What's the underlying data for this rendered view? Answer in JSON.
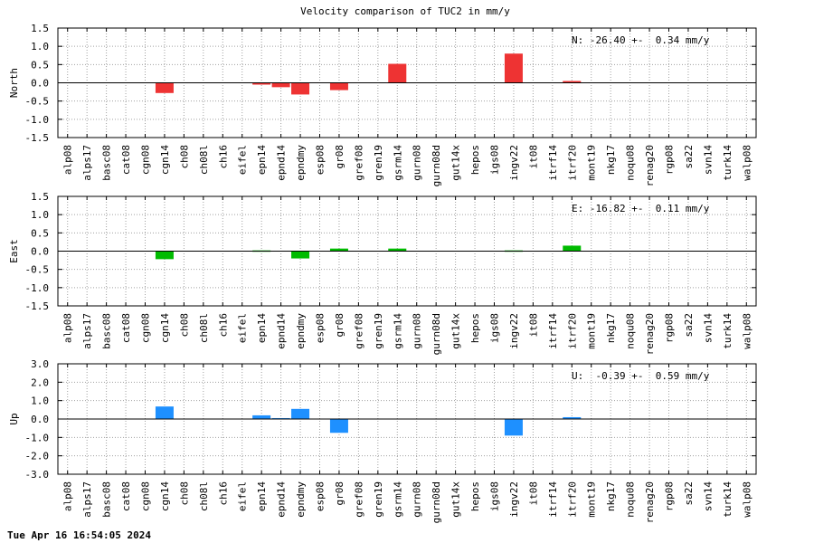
{
  "title": "Velocity comparison of TUC2 in mm/y",
  "footer": "Tue Apr 16 16:54:05 2024",
  "chart_data": [
    {
      "type": "bar",
      "ylabel": "North",
      "annotation": "N: -26.40 +-  0.34 mm/y",
      "color": "#ee3333",
      "ylim": [
        -1.5,
        1.5
      ],
      "yticks": [
        -1.5,
        -1.0,
        -0.5,
        0.0,
        0.5,
        1.0,
        1.5
      ],
      "tick_decimals": 1,
      "grid": true,
      "categories": [
        "alp08",
        "alps17",
        "basc08",
        "cat08",
        "cgn08",
        "cgn14",
        "ch08",
        "ch08l",
        "ch16",
        "eifel",
        "epn14",
        "epnd14",
        "epndmy",
        "esp08",
        "gr08",
        "gref08",
        "gren19",
        "gsrm14",
        "gurn08",
        "gurn08d",
        "gut14x",
        "hepos",
        "igs08",
        "ingv22",
        "it08",
        "itrf14",
        "itrf20",
        "mont19",
        "nkg17",
        "noqu08",
        "renag20",
        "rgp08",
        "sa22",
        "svn14",
        "turk14",
        "walp08"
      ],
      "values": [
        0,
        0,
        0,
        0,
        0,
        -0.28,
        0,
        0,
        0,
        0,
        -0.05,
        -0.12,
        -0.32,
        0,
        -0.2,
        0,
        0,
        0.52,
        0,
        0,
        0,
        0,
        0,
        0.8,
        0,
        0,
        0.05,
        0,
        0,
        0,
        0,
        0,
        0,
        0,
        0,
        0
      ]
    },
    {
      "type": "bar",
      "ylabel": "East",
      "annotation": "E: -16.82 +-  0.11 mm/y",
      "color": "#00bb00",
      "ylim": [
        -1.5,
        1.5
      ],
      "yticks": [
        -1.5,
        -1.0,
        -0.5,
        0.0,
        0.5,
        1.0,
        1.5
      ],
      "tick_decimals": 1,
      "grid": true,
      "categories": [
        "alp08",
        "alps17",
        "basc08",
        "cat08",
        "cgn08",
        "cgn14",
        "ch08",
        "ch08l",
        "ch16",
        "eifel",
        "epn14",
        "epnd14",
        "epndmy",
        "esp08",
        "gr08",
        "gref08",
        "gren19",
        "gsrm14",
        "gurn08",
        "gurn08d",
        "gut14x",
        "hepos",
        "igs08",
        "ingv22",
        "it08",
        "itrf14",
        "itrf20",
        "mont19",
        "nkg17",
        "noqu08",
        "renag20",
        "rgp08",
        "sa22",
        "svn14",
        "turk14",
        "walp08"
      ],
      "values": [
        0,
        0,
        0,
        0,
        0,
        -0.22,
        0,
        0,
        0,
        0,
        0.02,
        0,
        -0.2,
        0,
        0.07,
        0,
        0,
        0.07,
        0,
        0,
        0,
        0,
        0,
        0.02,
        0,
        0,
        0.15,
        0,
        0,
        0,
        0,
        0,
        0,
        0,
        0,
        0
      ]
    },
    {
      "type": "bar",
      "ylabel": "Up",
      "annotation": "U:  -0.39 +-  0.59 mm/y",
      "color": "#1e90ff",
      "ylim": [
        -3.0,
        3.0
      ],
      "yticks": [
        -3.0,
        -2.0,
        -1.0,
        0.0,
        1.0,
        2.0,
        3.0
      ],
      "tick_decimals": 1,
      "grid": true,
      "categories": [
        "alp08",
        "alps17",
        "basc08",
        "cat08",
        "cgn08",
        "cgn14",
        "ch08",
        "ch08l",
        "ch16",
        "eifel",
        "epn14",
        "epnd14",
        "epndmy",
        "esp08",
        "gr08",
        "gref08",
        "gren19",
        "gsrm14",
        "gurn08",
        "gurn08d",
        "gut14x",
        "hepos",
        "igs08",
        "ingv22",
        "it08",
        "itrf14",
        "itrf20",
        "mont19",
        "nkg17",
        "noqu08",
        "renag20",
        "rgp08",
        "sa22",
        "svn14",
        "turk14",
        "walp08"
      ],
      "values": [
        0,
        0,
        0,
        0,
        0,
        0.68,
        0,
        0,
        0,
        0,
        0.2,
        0.05,
        0.55,
        0,
        -0.75,
        0,
        0,
        0,
        0,
        0,
        0,
        0,
        0,
        -0.9,
        0,
        0,
        0.1,
        0,
        0,
        0,
        0,
        0,
        0,
        0,
        0,
        0
      ]
    }
  ]
}
